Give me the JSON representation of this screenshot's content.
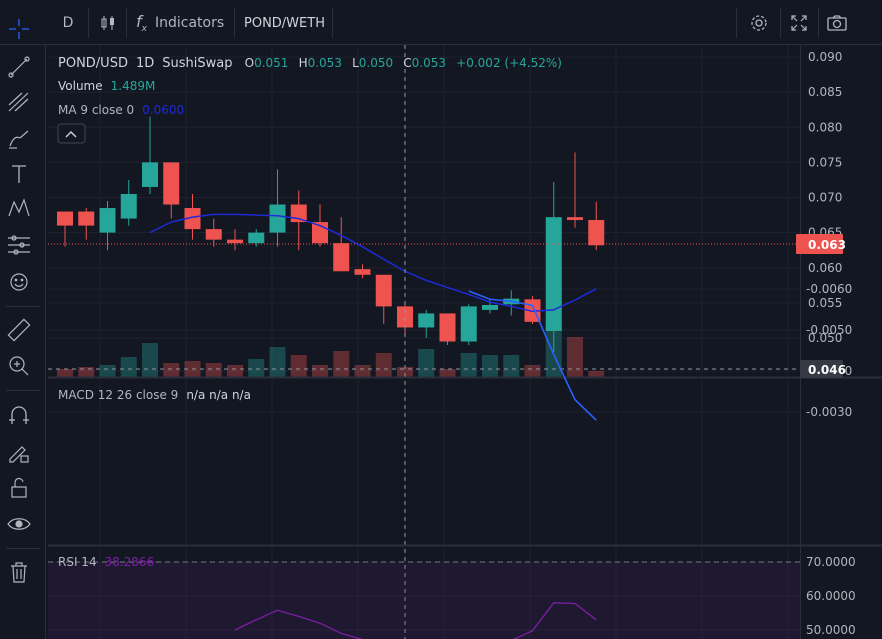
{
  "toolbar": {
    "interval": "D",
    "indicators_label": "Indicators",
    "symbol_tab": "POND/WETH"
  },
  "legend": {
    "symbol": "POND/USD",
    "interval": "1D",
    "exchange": "SushiSwap",
    "open_label": "O",
    "open": "0.051",
    "high_label": "H",
    "high": "0.053",
    "low_label": "L",
    "low": "0.050",
    "close_label": "C",
    "close": "0.053",
    "change": "+0.002 (+4.52%)",
    "volume_label": "Volume",
    "volume_value": "1.489M",
    "ma_label": "MA 9 close 0",
    "ma_value": "0.0600"
  },
  "macd": {
    "label": "MACD 12 26 close 9",
    "values": "n/a n/a n/a"
  },
  "rsi": {
    "label": "RSI 14",
    "value": "38.2866"
  },
  "price_axis": {
    "ticks": [
      "0.090",
      "0.085",
      "0.080",
      "0.075",
      "0.070",
      "0.065",
      "0.060",
      "0.055",
      "0.050"
    ],
    "current_price_badge": "0.063",
    "crosshair_badge": "0.046"
  },
  "macd_axis": {
    "ticks": [
      "-0.0030",
      "-0.0040",
      "-0.0050",
      "-0.0060"
    ]
  },
  "rsi_axis": {
    "ticks": [
      "70.0000",
      "60.0000",
      "50.0000"
    ]
  },
  "colors": {
    "up": "#26a69a",
    "down": "#ef5350",
    "ma": "#1e2ad8",
    "macd": "#2962ff",
    "rsi": "#7b1fa2"
  },
  "chart_data": {
    "type": "candlestick",
    "price_ylim": [
      0.0455,
      0.091
    ],
    "candles": [
      {
        "o": 0.066,
        "h": 0.068,
        "l": 0.063,
        "c": 0.068,
        "vol": 0.2,
        "up": false
      },
      {
        "o": 0.068,
        "h": 0.0685,
        "l": 0.064,
        "c": 0.066,
        "vol": 0.25,
        "up": false
      },
      {
        "o": 0.065,
        "h": 0.0695,
        "l": 0.0625,
        "c": 0.0685,
        "vol": 0.3,
        "up": true
      },
      {
        "o": 0.067,
        "h": 0.0725,
        "l": 0.066,
        "c": 0.0705,
        "vol": 0.5,
        "up": true
      },
      {
        "o": 0.0715,
        "h": 0.0815,
        "l": 0.0705,
        "c": 0.075,
        "vol": 0.85,
        "up": true
      },
      {
        "o": 0.075,
        "h": 0.075,
        "l": 0.067,
        "c": 0.069,
        "vol": 0.35,
        "up": false
      },
      {
        "o": 0.0685,
        "h": 0.0705,
        "l": 0.064,
        "c": 0.0655,
        "vol": 0.4,
        "up": false
      },
      {
        "o": 0.0655,
        "h": 0.067,
        "l": 0.063,
        "c": 0.064,
        "vol": 0.35,
        "up": false
      },
      {
        "o": 0.064,
        "h": 0.0655,
        "l": 0.0625,
        "c": 0.0635,
        "vol": 0.3,
        "up": false
      },
      {
        "o": 0.0635,
        "h": 0.0655,
        "l": 0.063,
        "c": 0.065,
        "vol": 0.45,
        "up": true
      },
      {
        "o": 0.065,
        "h": 0.074,
        "l": 0.063,
        "c": 0.069,
        "vol": 0.75,
        "up": true
      },
      {
        "o": 0.069,
        "h": 0.071,
        "l": 0.0625,
        "c": 0.0665,
        "vol": 0.55,
        "up": false
      },
      {
        "o": 0.0665,
        "h": 0.069,
        "l": 0.063,
        "c": 0.0635,
        "vol": 0.3,
        "up": false
      },
      {
        "o": 0.0635,
        "h": 0.0672,
        "l": 0.0595,
        "c": 0.0595,
        "vol": 0.65,
        "up": false
      },
      {
        "o": 0.0598,
        "h": 0.0605,
        "l": 0.0585,
        "c": 0.059,
        "vol": 0.3,
        "up": false
      },
      {
        "o": 0.059,
        "h": 0.059,
        "l": 0.052,
        "c": 0.0545,
        "vol": 0.6,
        "up": false
      },
      {
        "o": 0.0545,
        "h": 0.0552,
        "l": 0.0505,
        "c": 0.0515,
        "vol": 0.25,
        "up": false
      },
      {
        "o": 0.0515,
        "h": 0.054,
        "l": 0.05,
        "c": 0.0535,
        "vol": 0.7,
        "up": true
      },
      {
        "o": 0.0535,
        "h": 0.0535,
        "l": 0.049,
        "c": 0.0495,
        "vol": 0.2,
        "up": false
      },
      {
        "o": 0.0495,
        "h": 0.0548,
        "l": 0.049,
        "c": 0.0545,
        "vol": 0.6,
        "up": true
      },
      {
        "o": 0.054,
        "h": 0.0555,
        "l": 0.0535,
        "c": 0.0547,
        "vol": 0.55,
        "up": true
      },
      {
        "o": 0.0548,
        "h": 0.0568,
        "l": 0.0532,
        "c": 0.0556,
        "vol": 0.55,
        "up": true
      },
      {
        "o": 0.0555,
        "h": 0.056,
        "l": 0.052,
        "c": 0.0523,
        "vol": 0.3,
        "up": false
      },
      {
        "o": 0.051,
        "h": 0.0722,
        "l": 0.048,
        "c": 0.0672,
        "vol": 1.4,
        "up": true
      },
      {
        "o": 0.0672,
        "h": 0.0764,
        "l": 0.0657,
        "c": 0.0668,
        "vol": 1.0,
        "up": false
      },
      {
        "o": 0.0668,
        "h": 0.0694,
        "l": 0.0625,
        "c": 0.0632,
        "vol": 0.15,
        "up": false
      }
    ],
    "ma9": [
      null,
      null,
      null,
      null,
      0.065,
      0.0665,
      0.0672,
      0.0676,
      0.0676,
      0.0675,
      0.0674,
      0.067,
      0.066,
      0.0646,
      0.063,
      0.0612,
      0.0595,
      0.0582,
      0.0572,
      0.0562,
      0.0551,
      0.0545,
      0.0538,
      0.054,
      0.0554,
      0.057
    ],
    "macd_line": [
      {
        "i": 19,
        "v": -0.00595
      },
      {
        "i": 20,
        "v": -0.00575
      },
      {
        "i": 21,
        "v": -0.0057
      },
      {
        "i": 22,
        "v": -0.0056
      },
      {
        "i": 23,
        "v": -0.0044
      },
      {
        "i": 24,
        "v": -0.0033
      },
      {
        "i": 25,
        "v": -0.0028
      }
    ],
    "macd_ylim": [
      -0.0063,
      -0.0026
    ],
    "rsi_line": [
      {
        "i": 8,
        "v": 50.0
      },
      {
        "i": 9,
        "v": 53.0
      },
      {
        "i": 10,
        "v": 55.8
      },
      {
        "i": 11,
        "v": 54.0
      },
      {
        "i": 12,
        "v": 52.0
      },
      {
        "i": 13,
        "v": 49.0
      },
      {
        "i": 18,
        "v": 40.0
      },
      {
        "i": 20,
        "v": 44.0
      },
      {
        "i": 22,
        "v": 49.8
      },
      {
        "i": 23,
        "v": 58.0
      },
      {
        "i": 24,
        "v": 57.8
      },
      {
        "i": 25,
        "v": 53.0
      }
    ],
    "rsi_ylim": [
      48.0,
      74.0
    ]
  }
}
